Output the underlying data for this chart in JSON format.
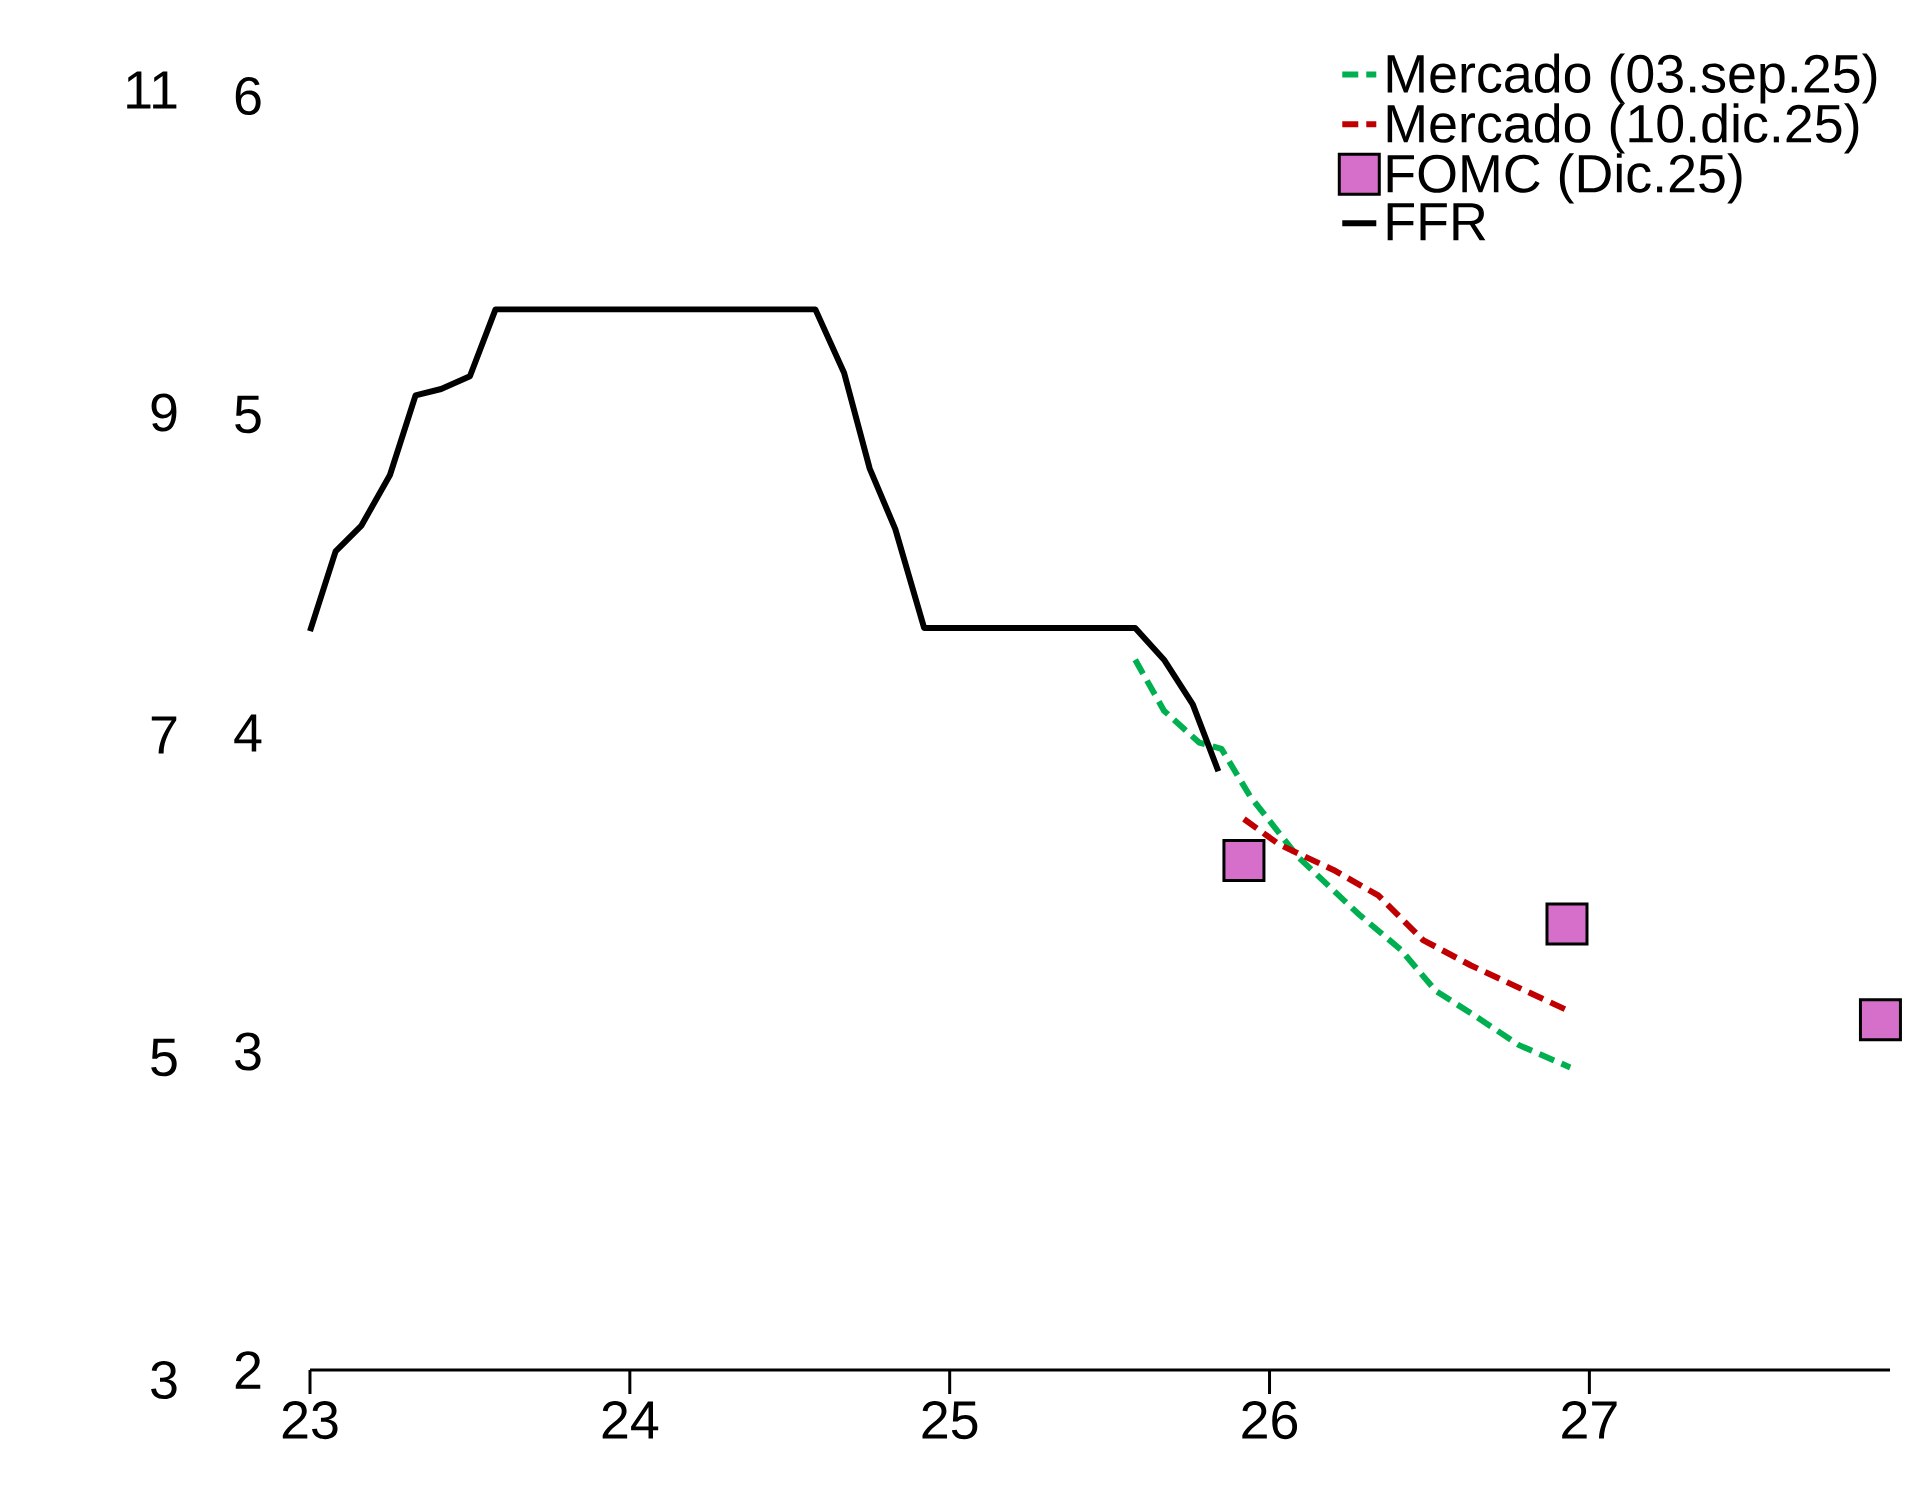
{
  "chart_data": {
    "type": "line",
    "xlim": [
      23,
      27.94
    ],
    "xticks": [
      23,
      24,
      25,
      26,
      27
    ],
    "ylim": [
      2,
      6
    ],
    "yticks": [
      2,
      3,
      4,
      5,
      6
    ],
    "y2lim": [
      3,
      11
    ],
    "y2ticks": [
      3,
      5,
      7,
      9,
      11
    ],
    "legend": "top right",
    "series": [
      {
        "name": "Mercado (03.sep.25)",
        "color": "#00b050",
        "line_style": "dashed",
        "x": [
          25.58,
          25.67,
          25.78,
          25.85,
          25.94,
          26.09,
          26.28,
          26.41,
          26.52,
          26.63,
          26.78,
          26.94
        ],
        "values": [
          4.23,
          4.07,
          3.97,
          3.95,
          3.8,
          3.61,
          3.43,
          3.32,
          3.19,
          3.12,
          3.02,
          2.95
        ]
      },
      {
        "name": "Mercado (10.dic.25)",
        "color": "#c00000",
        "line_style": "dashed",
        "x": [
          25.92,
          26.03,
          26.2,
          26.34,
          26.48,
          26.63,
          26.93
        ],
        "values": [
          3.73,
          3.65,
          3.57,
          3.49,
          3.35,
          3.27,
          3.13
        ]
      },
      {
        "name": "FOMC (Dic.25)",
        "type": "scatter",
        "marker": "square",
        "color": "#d66fc9",
        "x": [
          25.92,
          26.93,
          27.91
        ],
        "values": [
          3.6,
          3.4,
          3.1
        ]
      },
      {
        "name": "FFR",
        "color": "#000000",
        "line_style": "solid",
        "x": [
          23.0,
          23.08,
          23.16,
          23.25,
          23.33,
          23.41,
          23.5,
          23.58,
          24.58,
          24.67,
          24.75,
          24.83,
          24.92,
          25.58,
          25.67,
          25.76,
          25.84
        ],
        "values": [
          4.32,
          4.57,
          4.65,
          4.81,
          5.06,
          5.08,
          5.12,
          5.33,
          5.33,
          5.13,
          4.83,
          4.64,
          4.33,
          4.33,
          4.23,
          4.09,
          3.88
        ]
      }
    ]
  }
}
